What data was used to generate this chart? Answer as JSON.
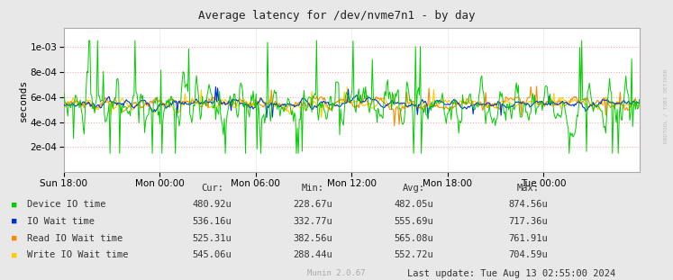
{
  "title": "Average latency for /dev/nvme7n1 - by day",
  "ylabel": "seconds",
  "xlabel_ticks": [
    "Sun 18:00",
    "Mon 00:00",
    "Mon 06:00",
    "Mon 12:00",
    "Mon 18:00",
    "Tue 00:00"
  ],
  "ylim": [
    0,
    0.00115
  ],
  "yticks": [
    0.0002,
    0.0004,
    0.0006,
    0.0008,
    0.001
  ],
  "bg_color": "#e8e8e8",
  "plot_bg_color": "#ffffff",
  "grid_color_h": "#ffaaaa",
  "grid_color_v": "#cccccc",
  "line_colors": {
    "device_io": "#00cc00",
    "io_wait": "#0033cc",
    "read_io_wait": "#ff8800",
    "write_io_wait": "#ffcc00"
  },
  "legend": [
    {
      "label": "Device IO time",
      "color": "#00cc00"
    },
    {
      "label": "IO Wait time",
      "color": "#0033cc"
    },
    {
      "label": "Read IO Wait time",
      "color": "#ff8800"
    },
    {
      "label": "Write IO Wait time",
      "color": "#ffcc00"
    }
  ],
  "table_headers": [
    "Cur:",
    "Min:",
    "Avg:",
    "Max:"
  ],
  "table_data": [
    [
      "480.92u",
      "228.67u",
      "482.05u",
      "874.56u"
    ],
    [
      "536.16u",
      "332.77u",
      "555.69u",
      "717.36u"
    ],
    [
      "525.31u",
      "382.56u",
      "565.08u",
      "761.91u"
    ],
    [
      "545.06u",
      "288.44u",
      "552.72u",
      "704.59u"
    ]
  ],
  "last_update": "Last update: Tue Aug 13 02:55:00 2024",
  "munin_label": "Munin 2.0.67",
  "watermark": "RRDTOOL / TOBI OETIKER",
  "n_points": 600,
  "base_latency": 0.00053,
  "amplitude": 0.00011,
  "device_amplitude": 0.0002
}
